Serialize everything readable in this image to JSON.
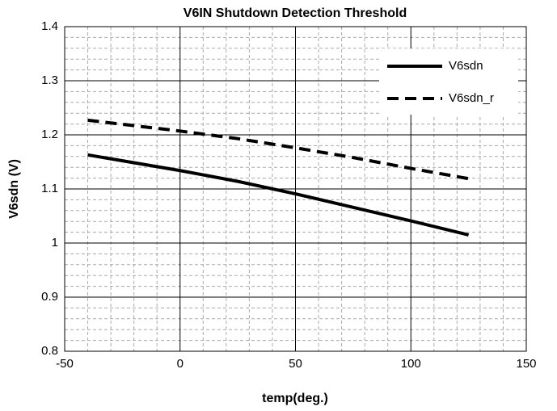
{
  "chart_data": {
    "type": "line",
    "title": "V6IN Shutdown Detection Threshold",
    "x_label": "temp(deg.)",
    "y_label": "V6sdn (V)",
    "x": [
      -40,
      0,
      25,
      50,
      75,
      100,
      125
    ],
    "series": [
      {
        "name": "V6sdn",
        "color": "#000000",
        "linestyle": "solid",
        "values": [
          1.163,
          1.134,
          1.114,
          1.091,
          1.066,
          1.041,
          1.015
        ]
      },
      {
        "name": "V6sdn_r",
        "color": "#000000",
        "linestyle": "dashed",
        "values": [
          1.227,
          1.207,
          1.193,
          1.176,
          1.158,
          1.138,
          1.119
        ]
      }
    ],
    "xlim": [
      -50,
      150
    ],
    "xticks": [
      -50,
      0,
      50,
      100,
      150
    ],
    "ylim": [
      0.8,
      1.4
    ],
    "yticks": [
      0.8,
      0.9,
      1,
      1.1,
      1.2,
      1.3,
      1.4
    ],
    "grid": true,
    "minor_grid": true,
    "legend": "upper right"
  }
}
